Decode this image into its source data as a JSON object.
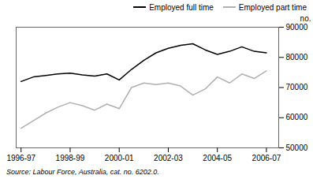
{
  "chart_data": {
    "type": "line",
    "x": [
      0,
      0.5,
      1,
      1.5,
      2,
      2.5,
      3,
      3.5,
      4,
      4.5,
      5,
      5.5,
      6,
      6.5,
      7,
      7.5,
      8,
      8.5,
      9,
      9.5,
      10
    ],
    "series": [
      {
        "name": "Employed full time",
        "color": "#000000",
        "values": [
          72000,
          73500,
          74000,
          74500,
          74800,
          74200,
          73800,
          74500,
          72500,
          76000,
          79000,
          81500,
          83000,
          84000,
          84500,
          82500,
          81000,
          82000,
          83500,
          82000,
          81500
        ]
      },
      {
        "name": "Employed part time",
        "color": "#b0b0b0",
        "values": [
          56500,
          59000,
          61500,
          63500,
          65000,
          64000,
          62500,
          64500,
          63000,
          70000,
          71500,
          71000,
          71500,
          70500,
          67500,
          69500,
          73500,
          71500,
          74500,
          73000,
          75500
        ]
      }
    ],
    "xlim": [
      -0.2,
      10.5
    ],
    "xticks": [
      {
        "value": 0,
        "label": "1996-97"
      },
      {
        "value": 2,
        "label": "1998-99"
      },
      {
        "value": 4,
        "label": "2000-01"
      },
      {
        "value": 6,
        "label": "2002-03"
      },
      {
        "value": 8,
        "label": "2004-05"
      },
      {
        "value": 10,
        "label": "2006-07"
      }
    ],
    "ylim": [
      50000,
      90000
    ],
    "yticks": [
      50000,
      60000,
      70000,
      80000,
      90000
    ],
    "ylabel": "no.",
    "legend": "upper right",
    "grid": false,
    "annotations": [
      "Source: Labour Force, Australia, cat. no. 6202.0."
    ]
  }
}
